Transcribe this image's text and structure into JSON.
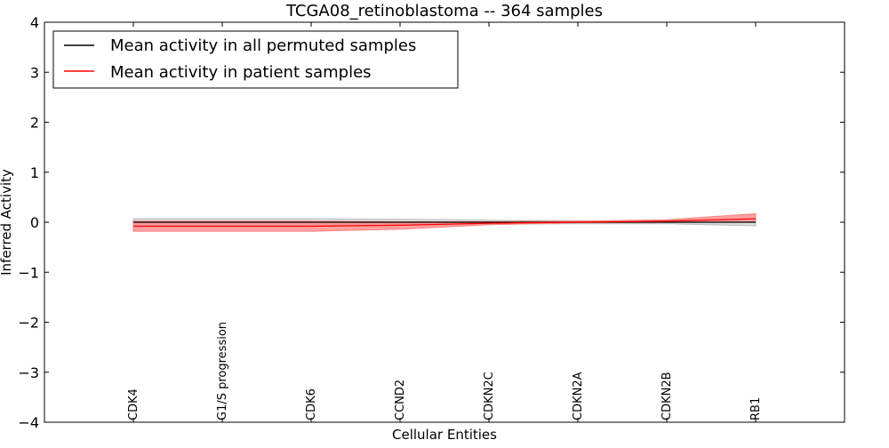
{
  "chart_data": {
    "type": "line",
    "title": "TCGA08_retinoblastoma -- 364 samples",
    "xlabel": "Cellular Entities",
    "ylabel": "Inferred Activity",
    "ylim": [
      -4,
      4
    ],
    "xlim": [
      -1,
      8
    ],
    "yticks": [
      -4,
      -3,
      -2,
      -1,
      0,
      1,
      2,
      3,
      4
    ],
    "ytick_labels": [
      "−4",
      "−3",
      "−2",
      "−1",
      "0",
      "1",
      "2",
      "3",
      "4"
    ],
    "categories": [
      "CDK4",
      "G1/S progression",
      "CDK6",
      "CCND2",
      "CDKN2C",
      "CDKN2A",
      "CDKN2B",
      "RB1"
    ],
    "grid": false,
    "legend_position": "top-left",
    "series": [
      {
        "name": "Mean activity in all permuted samples",
        "color": "#000000",
        "band_color": "#bbbbbb",
        "values": [
          0.0,
          0.0,
          0.0,
          0.0,
          0.0,
          0.0,
          0.0,
          0.0
        ],
        "band_lower": [
          -0.07,
          -0.07,
          -0.07,
          -0.06,
          -0.04,
          -0.03,
          -0.03,
          -0.07
        ],
        "band_upper": [
          0.07,
          0.07,
          0.07,
          0.06,
          0.04,
          0.03,
          0.03,
          0.07
        ]
      },
      {
        "name": "Mean activity in patient samples",
        "color": "#ff0000",
        "band_color": "#ff8080",
        "values": [
          -0.08,
          -0.08,
          -0.08,
          -0.06,
          -0.02,
          0.0,
          0.02,
          0.07
        ],
        "band_lower": [
          -0.18,
          -0.18,
          -0.18,
          -0.14,
          -0.05,
          -0.01,
          0.0,
          0.0
        ],
        "band_upper": [
          0.02,
          0.02,
          0.02,
          0.01,
          0.01,
          0.02,
          0.05,
          0.17
        ]
      }
    ]
  }
}
